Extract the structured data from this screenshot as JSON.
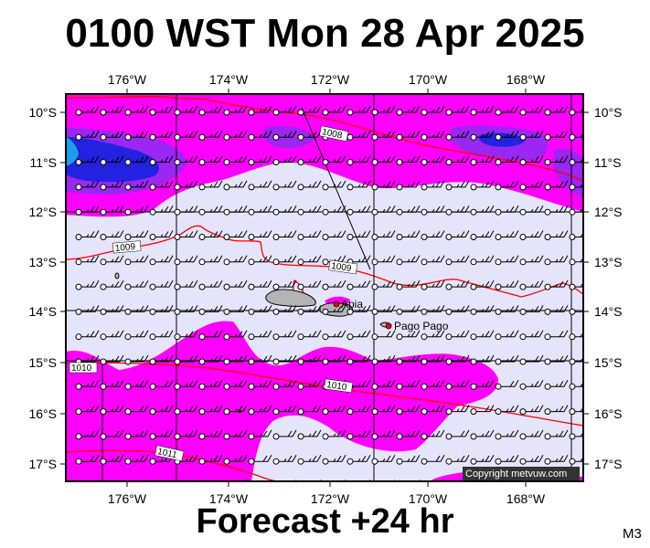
{
  "title": "0100 WST Mon 28 Apr 2025",
  "footer": "Forecast +24 hr",
  "model_code": "M3",
  "copyright": "Copyright metvuw.com",
  "map": {
    "lon_labels": [
      "176°W",
      "174°W",
      "172°W",
      "170°W",
      "168°W"
    ],
    "lat_labels": [
      "10°S",
      "11°S",
      "12°S",
      "13°S",
      "14°S",
      "15°S",
      "16°S",
      "17°S"
    ],
    "places": [
      "Apia",
      "Pago Pago"
    ],
    "isobar_labels": [
      "1008",
      "1009",
      "1009",
      "1010",
      "1010",
      "1011"
    ],
    "colors": {
      "background_rain_free": "#e4e4fa",
      "light_rain": "#ff00ff",
      "moderate_rain": "#9a27f2",
      "heavy_rain": "#2222e0",
      "very_heavy_rain": "#1aa0e8",
      "isobar": "#ff0000",
      "land": "#b4b4b4"
    }
  }
}
